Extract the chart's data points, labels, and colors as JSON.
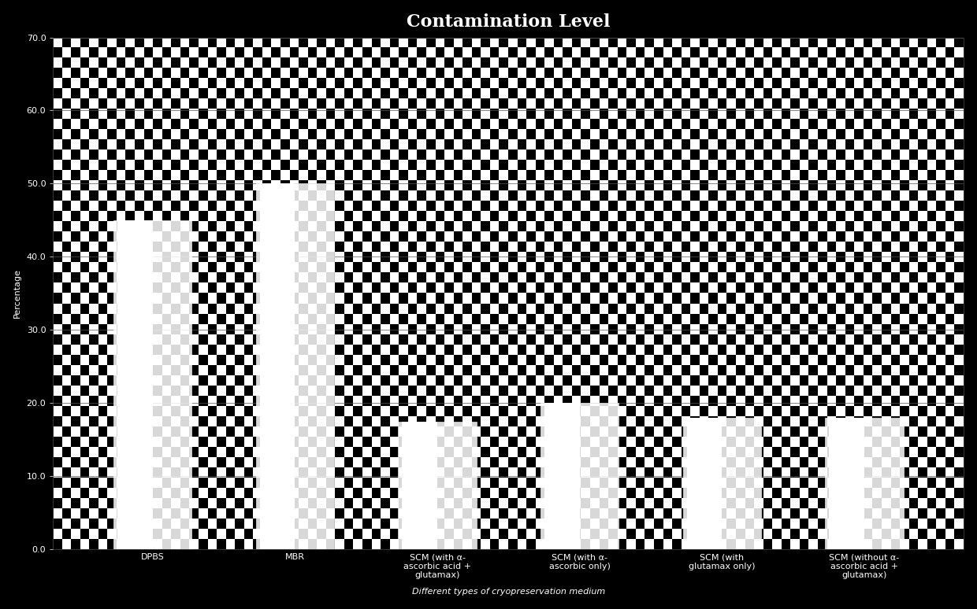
{
  "title": "Contamination Level",
  "xlabel": "Different types of cryopreservation medium",
  "ylabel": "Percentage",
  "categories": [
    "DPBS",
    "MBR",
    "SCM (with α-\nascorbic acid +\nglutamax)",
    "SCM (with α-\nascorbic only)",
    "SCM (with\nglutamax only)",
    "SCM (without α-\nascorbic acid +\nglutamax)"
  ],
  "values": [
    45.0,
    50.0,
    17.5,
    20.0,
    18.0,
    18.0
  ],
  "ylim": [
    0,
    70
  ],
  "yticks": [
    0.0,
    10.0,
    20.0,
    30.0,
    40.0,
    50.0,
    60.0,
    70.0
  ],
  "background_color": "#000000",
  "title_color": "#ffffff",
  "tick_label_color": "#ffffff",
  "axis_label_color": "#ffffff",
  "title_fontsize": 16,
  "label_fontsize": 8,
  "tick_fontsize": 8,
  "bar_width": 0.55
}
